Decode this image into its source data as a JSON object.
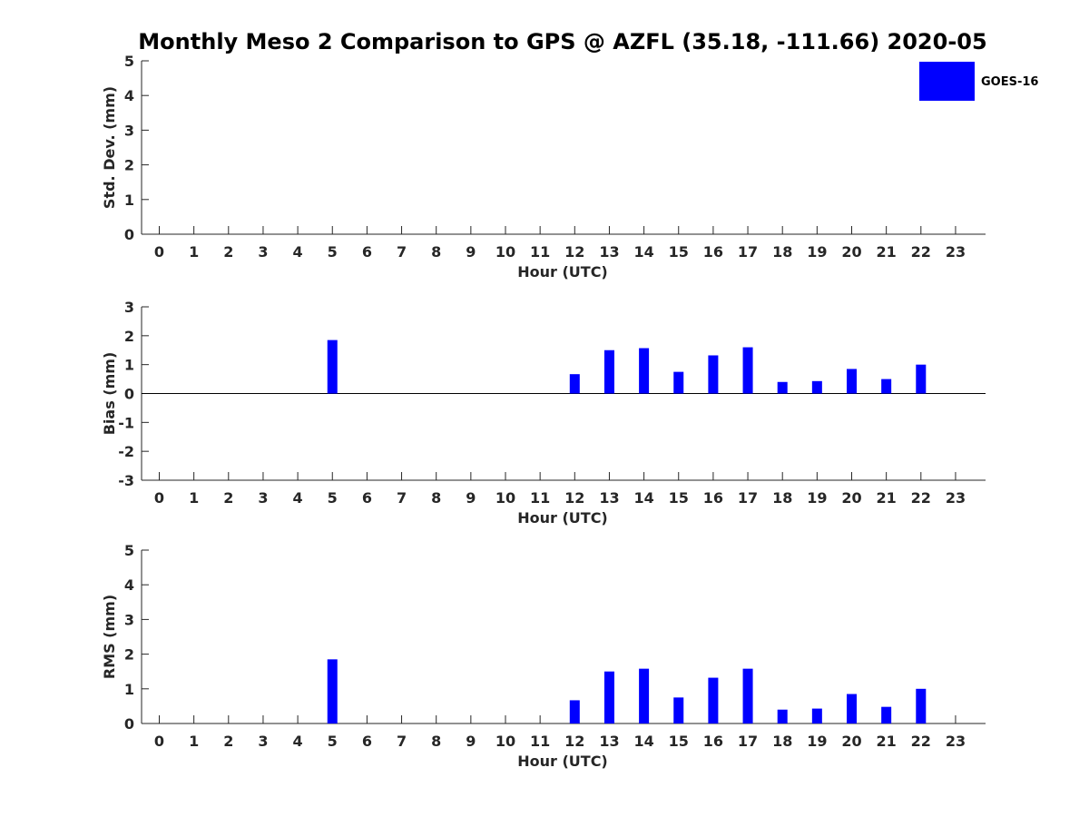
{
  "chart_data": {
    "title": "Monthly Meso 2 Comparison to GPS @ AZFL (35.18, -111.66) 2020-05",
    "legend": {
      "entries": [
        "GOES-16"
      ],
      "placement": "top-right"
    },
    "colors": {
      "series": "#0000ff"
    },
    "panels": [
      {
        "type": "bar",
        "xlabel": "Hour (UTC)",
        "ylabel": "Std. Dev. (mm)",
        "categories": [
          0,
          1,
          2,
          3,
          4,
          5,
          6,
          7,
          8,
          9,
          10,
          11,
          12,
          13,
          14,
          15,
          16,
          17,
          18,
          19,
          20,
          21,
          22,
          23
        ],
        "ylim": [
          0,
          5
        ],
        "yticks": [
          0,
          1,
          2,
          3,
          4,
          5
        ],
        "series": [
          {
            "name": "GOES-16",
            "values": [
              null,
              null,
              null,
              null,
              null,
              null,
              null,
              null,
              null,
              null,
              null,
              null,
              null,
              null,
              null,
              null,
              null,
              null,
              null,
              null,
              null,
              null,
              null,
              null
            ]
          }
        ]
      },
      {
        "type": "bar",
        "xlabel": "Hour (UTC)",
        "ylabel": "Bias (mm)",
        "categories": [
          0,
          1,
          2,
          3,
          4,
          5,
          6,
          7,
          8,
          9,
          10,
          11,
          12,
          13,
          14,
          15,
          16,
          17,
          18,
          19,
          20,
          21,
          22,
          23
        ],
        "ylim": [
          -3,
          3
        ],
        "yticks": [
          -3,
          -2,
          -1,
          0,
          1,
          2,
          3
        ],
        "zero_line": true,
        "series": [
          {
            "name": "GOES-16",
            "values": [
              null,
              null,
              null,
              null,
              null,
              1.85,
              null,
              null,
              null,
              null,
              null,
              null,
              0.67,
              1.5,
              1.57,
              0.75,
              1.32,
              1.6,
              0.4,
              0.43,
              0.85,
              0.5,
              1.0,
              null
            ]
          }
        ]
      },
      {
        "type": "bar",
        "xlabel": "Hour (UTC)",
        "ylabel": "RMS (mm)",
        "categories": [
          0,
          1,
          2,
          3,
          4,
          5,
          6,
          7,
          8,
          9,
          10,
          11,
          12,
          13,
          14,
          15,
          16,
          17,
          18,
          19,
          20,
          21,
          22,
          23
        ],
        "ylim": [
          0,
          5
        ],
        "yticks": [
          0,
          1,
          2,
          3,
          4,
          5
        ],
        "series": [
          {
            "name": "GOES-16",
            "values": [
              null,
              null,
              null,
              null,
              null,
              1.85,
              null,
              null,
              null,
              null,
              null,
              null,
              0.67,
              1.5,
              1.58,
              0.75,
              1.32,
              1.58,
              0.4,
              0.43,
              0.85,
              0.48,
              1.0,
              null
            ]
          }
        ]
      }
    ]
  }
}
